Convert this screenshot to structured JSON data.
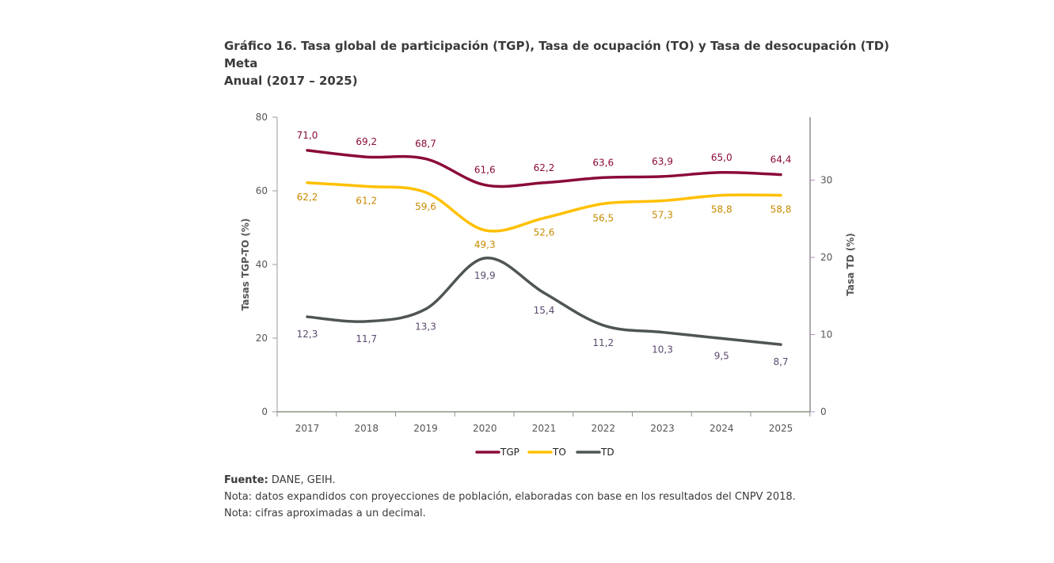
{
  "title": {
    "line1": "Gráfico 16. Tasa global de participación (TGP), Tasa de ocupación (TO) y Tasa de desocupación (TD)",
    "line2": "Meta",
    "line3": "Anual (2017 – 2025)"
  },
  "notes": {
    "source_label": "Fuente:",
    "source_text": " DANE, GEIH.",
    "note1": "Nota: datos expandidos con proyecciones de población, elaboradas con base en los resultados del CNPV 2018.",
    "note2": "Nota: cifras aproximadas a un decimal."
  },
  "chart_data": {
    "type": "line",
    "categories": [
      "2017",
      "2018",
      "2019",
      "2020",
      "2021",
      "2022",
      "2023",
      "2024",
      "2025"
    ],
    "ylabel": "Tasas  TGP-TO (%)",
    "y2label": "Tasa TD (%)",
    "ylim": [
      0,
      80
    ],
    "yticks": [
      0,
      20,
      40,
      60,
      80
    ],
    "y2lim": [
      0,
      38.15
    ],
    "y2ticks": [
      0,
      10,
      20,
      30
    ],
    "legend_position": "bottom",
    "series": [
      {
        "name": "TGP",
        "axis": "left",
        "color": "#8B0A3A",
        "label_color": "#8B0A3A",
        "values": [
          71.0,
          69.2,
          68.7,
          61.6,
          62.2,
          63.6,
          63.9,
          65.0,
          64.4
        ],
        "labels": [
          "71,0",
          "69,2",
          "68,7",
          "61,6",
          "62,2",
          "63,6",
          "63,9",
          "65,0",
          "64,4"
        ]
      },
      {
        "name": "TO",
        "axis": "left",
        "color": "#FFC000",
        "label_color": "#C88A00",
        "values": [
          62.2,
          61.2,
          59.6,
          49.3,
          52.6,
          56.5,
          57.3,
          58.8,
          58.8
        ],
        "labels": [
          "62,2",
          "61,2",
          "59,6",
          "49,3",
          "52,6",
          "56,5",
          "57,3",
          "58,8",
          "58,8"
        ]
      },
      {
        "name": "TD",
        "axis": "right",
        "color": "#4F5651",
        "label_color": "#5B4A6E",
        "values": [
          12.3,
          11.7,
          13.3,
          19.9,
          15.4,
          11.2,
          10.3,
          9.5,
          8.7
        ],
        "labels": [
          "12,3",
          "11,7",
          "13,3",
          "19,9",
          "15,4",
          "11,2",
          "10,3",
          "9,5",
          "8,7"
        ]
      }
    ]
  }
}
